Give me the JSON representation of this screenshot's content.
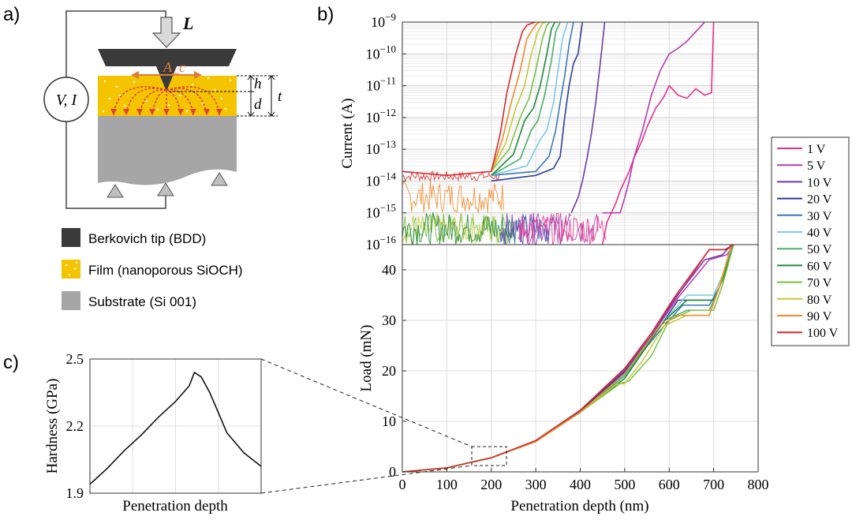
{
  "panel_labels": {
    "a": "a)",
    "b": "b)",
    "c": "c)"
  },
  "schematic": {
    "load_label": "L",
    "area_label": "A_c",
    "source_label": "V, I",
    "h_label": "h",
    "d_label": "d",
    "t_label": "t",
    "legend": [
      {
        "label": "Berkovich tip (BDD)",
        "color": "#3a3a3a"
      },
      {
        "label": "Film (nanoporous SiOCH)",
        "color": "#f5c400"
      },
      {
        "label": "Substrate (Si 001)",
        "color": "#a6a6a6"
      }
    ]
  },
  "legend": [
    {
      "label": "1 V",
      "color": "#e8318a"
    },
    {
      "label": "5 V",
      "color": "#b43bb0"
    },
    {
      "label": "10 V",
      "color": "#6f3aa8"
    },
    {
      "label": "20 V",
      "color": "#2e3d99"
    },
    {
      "label": "30 V",
      "color": "#3a78b8"
    },
    {
      "label": "40 V",
      "color": "#7cc8e6"
    },
    {
      "label": "50 V",
      "color": "#4ab06a"
    },
    {
      "label": "60 V",
      "color": "#1e8a3a"
    },
    {
      "label": "70 V",
      "color": "#7ac043"
    },
    {
      "label": "80 V",
      "color": "#c2c83a"
    },
    {
      "label": "90 V",
      "color": "#f08a2a"
    },
    {
      "label": "100 V",
      "color": "#d42a2a"
    }
  ],
  "chart_data": [
    {
      "type": "line",
      "panel": "b-top",
      "ylabel": "Current (A)",
      "yscale": "log",
      "ylim": [
        1e-16,
        1e-09
      ],
      "xlim": [
        0,
        800
      ],
      "y_tick_labels": [
        "10^-9",
        "10^-10",
        "10^-11",
        "10^-12",
        "10^-13",
        "10^-14",
        "10^-15",
        "10^-16"
      ],
      "grid": true,
      "series": [
        {
          "name": "1 V",
          "x": [
            450,
            460,
            470,
            480,
            490,
            500,
            510,
            520,
            530,
            540,
            550,
            560,
            570,
            580,
            590,
            600,
            620,
            640,
            660,
            680,
            695,
            700
          ],
          "y": [
            1e-16,
            5e-16,
            1e-15,
            2e-15,
            5e-15,
            1e-14,
            2e-14,
            5e-14,
            1e-13,
            2e-13,
            5e-13,
            1e-12,
            2e-12,
            3e-12,
            5e-12,
            1e-11,
            5e-12,
            4e-12,
            8e-12,
            5e-12,
            6e-12,
            1e-09
          ]
        },
        {
          "name": "5 V",
          "x": [
            450,
            490,
            500,
            510,
            520,
            540,
            560,
            580,
            600,
            620,
            640,
            660,
            680
          ],
          "y": [
            1e-15,
            1e-15,
            3e-15,
            1e-14,
            5e-14,
            4e-13,
            5e-12,
            3e-11,
            1e-10,
            1.5e-10,
            2.5e-10,
            5e-10,
            1e-09
          ]
        },
        {
          "name": "10 V",
          "x": [
            380,
            395,
            405,
            415,
            425,
            435,
            445,
            455
          ],
          "y": [
            1e-15,
            3e-15,
            1e-14,
            5e-14,
            3e-13,
            3e-12,
            5e-11,
            1e-09
          ]
        },
        {
          "name": "20 V",
          "x": [
            200,
            300,
            340,
            355,
            365,
            375,
            385,
            395,
            405
          ],
          "y": [
            1e-14,
            1.5e-14,
            2.5e-14,
            6e-14,
            1e-12,
            1e-11,
            5e-11,
            1e-10,
            1e-09
          ]
        },
        {
          "name": "30 V",
          "x": [
            200,
            300,
            330,
            345,
            355,
            365,
            375,
            385
          ],
          "y": [
            1.5e-14,
            2e-14,
            6e-14,
            4e-13,
            3e-12,
            2e-11,
            2e-10,
            1e-09
          ]
        },
        {
          "name": "40 V",
          "x": [
            200,
            280,
            310,
            325,
            340,
            350,
            360,
            372
          ],
          "y": [
            1.5e-14,
            3e-14,
            2e-13,
            4e-13,
            3e-12,
            3e-11,
            3e-10,
            1e-09
          ]
        },
        {
          "name": "50 V",
          "x": [
            200,
            265,
            290,
            305,
            320,
            335,
            345,
            355
          ],
          "y": [
            1.5e-14,
            5e-14,
            4e-13,
            8e-13,
            5e-12,
            6e-11,
            5e-10,
            1e-09
          ]
        },
        {
          "name": "60 V",
          "x": [
            200,
            250,
            275,
            295,
            310,
            325,
            335,
            343
          ],
          "y": [
            1.5e-14,
            7e-14,
            8e-13,
            2e-12,
            1e-11,
            1e-10,
            6e-10,
            1e-09
          ]
        },
        {
          "name": "70 V",
          "x": [
            200,
            240,
            265,
            285,
            300,
            315,
            325,
            332
          ],
          "y": [
            2e-14,
            1e-13,
            1e-12,
            4e-12,
            3e-11,
            3e-10,
            8e-10,
            1e-09
          ]
        },
        {
          "name": "80 V",
          "x": [
            200,
            232,
            255,
            275,
            290,
            305,
            315,
            322
          ],
          "y": [
            2e-14,
            1.5e-13,
            2e-12,
            1e-11,
            1e-10,
            5e-10,
            9e-10,
            1e-09
          ]
        },
        {
          "name": "90 V",
          "x": [
            200,
            225,
            245,
            265,
            280,
            293,
            303,
            310
          ],
          "y": [
            2e-14,
            2e-13,
            3e-12,
            3e-11,
            3e-10,
            6e-10,
            9e-10,
            1e-09
          ]
        },
        {
          "name": "100 V",
          "x": [
            0,
            100,
            200,
            220,
            235,
            255,
            270,
            280,
            290,
            298
          ],
          "y": [
            2e-14,
            1.5e-14,
            2e-14,
            3e-13,
            6e-12,
            1e-10,
            5e-10,
            8e-10,
            9e-10,
            1e-09
          ]
        }
      ]
    },
    {
      "type": "line",
      "panel": "b-bottom",
      "xlabel": "Penetration depth (nm)",
      "ylabel": "Load (mN)",
      "xlim": [
        0,
        800
      ],
      "ylim": [
        0,
        45
      ],
      "xticks": [
        0,
        100,
        200,
        300,
        400,
        500,
        600,
        700,
        800
      ],
      "yticks": [
        0,
        10,
        20,
        30,
        40
      ],
      "grid": true,
      "series": [
        {
          "name": "1 V",
          "x": [
            0,
            100,
            200,
            300,
            400,
            500,
            560,
            620,
            690,
            730,
            745
          ],
          "y": [
            0,
            0.8,
            2.8,
            6.2,
            12.2,
            20.5,
            27,
            35,
            44,
            44,
            45
          ]
        },
        {
          "name": "5 V",
          "x": [
            0,
            100,
            200,
            300,
            400,
            500,
            560,
            620,
            690,
            730,
            745
          ],
          "y": [
            0,
            0.8,
            2.8,
            6,
            12,
            20.3,
            27,
            34.5,
            42,
            43,
            45
          ]
        },
        {
          "name": "10 V",
          "x": [
            0,
            100,
            200,
            300,
            400,
            500,
            560,
            610,
            680,
            720,
            740
          ],
          "y": [
            0,
            0.8,
            2.8,
            6,
            12,
            20,
            27,
            34,
            42,
            43,
            45
          ]
        },
        {
          "name": "20 V",
          "x": [
            0,
            100,
            200,
            300,
            400,
            500,
            570,
            620,
            700,
            720,
            740
          ],
          "y": [
            0,
            0.8,
            2.8,
            6,
            12,
            19.8,
            27.5,
            34,
            34,
            38,
            45
          ]
        },
        {
          "name": "30 V",
          "x": [
            0,
            100,
            200,
            300,
            400,
            500,
            580,
            630,
            690,
            715,
            740
          ],
          "y": [
            0,
            0.8,
            2.8,
            6,
            11.8,
            19.5,
            28,
            33,
            33,
            37,
            45
          ]
        },
        {
          "name": "40 V",
          "x": [
            0,
            100,
            200,
            300,
            400,
            500,
            580,
            640,
            700,
            720,
            745
          ],
          "y": [
            0,
            0.8,
            2.8,
            6,
            11.8,
            19.3,
            29,
            35,
            35,
            39,
            45
          ]
        },
        {
          "name": "50 V",
          "x": [
            0,
            100,
            200,
            300,
            400,
            500,
            590,
            640,
            690,
            715,
            740
          ],
          "y": [
            0,
            0.8,
            2.8,
            6,
            11.8,
            19,
            30,
            32,
            32,
            37,
            45
          ]
        },
        {
          "name": "60 V",
          "x": [
            0,
            100,
            200,
            300,
            400,
            500,
            590,
            640,
            700,
            720,
            745
          ],
          "y": [
            0,
            0.8,
            2.8,
            6,
            11.8,
            18.5,
            30,
            34,
            34,
            38,
            45
          ]
        },
        {
          "name": "70 V",
          "x": [
            0,
            100,
            200,
            300,
            400,
            490,
            510,
            560,
            600,
            650,
            700,
            720,
            745
          ],
          "y": [
            0,
            0.8,
            2.8,
            6,
            11.8,
            17.5,
            18,
            23,
            30,
            32,
            32,
            37,
            45
          ]
        },
        {
          "name": "80 V",
          "x": [
            0,
            100,
            200,
            300,
            400,
            480,
            500,
            540,
            590,
            640,
            690,
            710,
            740
          ],
          "y": [
            0,
            0.8,
            2.8,
            6,
            11.8,
            17.3,
            17.5,
            22,
            29,
            31,
            31,
            36,
            45
          ]
        },
        {
          "name": "90 V",
          "x": [
            0,
            100,
            200,
            300,
            400,
            500,
            580,
            620,
            690,
            715,
            740
          ],
          "y": [
            0,
            0.8,
            2.8,
            6,
            11.8,
            19.5,
            29,
            31,
            31,
            37,
            45
          ]
        },
        {
          "name": "100 V",
          "x": [
            0,
            100,
            200,
            300,
            400,
            500,
            560,
            615,
            690,
            725,
            745
          ],
          "y": [
            0,
            0.8,
            2.8,
            6.2,
            12.2,
            20.5,
            27.5,
            35,
            44,
            44,
            45
          ]
        }
      ]
    },
    {
      "type": "line",
      "panel": "c",
      "xlabel": "Penetration depth",
      "ylabel": "Hardness (GPa)",
      "ylim": [
        1.9,
        2.5
      ],
      "yticks": [
        1.9,
        2.2,
        2.5
      ],
      "xlim": [
        0,
        1
      ],
      "grid": true,
      "series": [
        {
          "x": [
            0,
            0.1,
            0.2,
            0.3,
            0.4,
            0.5,
            0.58,
            0.61,
            0.65,
            0.7,
            0.75,
            0.8,
            0.9,
            1.0
          ],
          "y": [
            1.94,
            2.01,
            2.09,
            2.16,
            2.24,
            2.31,
            2.38,
            2.44,
            2.42,
            2.35,
            2.26,
            2.17,
            2.08,
            2.02
          ]
        }
      ]
    }
  ]
}
